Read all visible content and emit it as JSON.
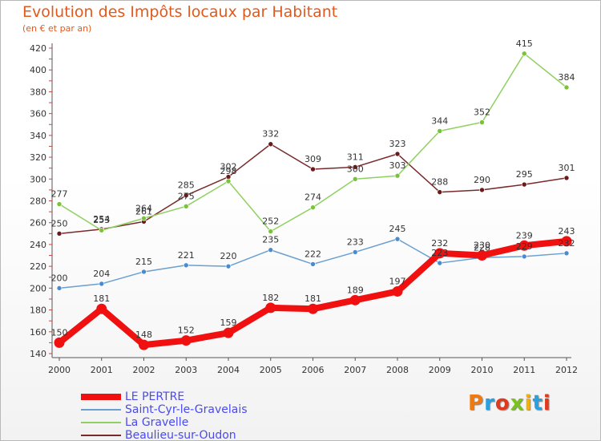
{
  "title": "Evolution des Impôts locaux par Habitant",
  "subtitle": "(en € et par an)",
  "brand": "Proxiti",
  "brand_colors": [
    "#f07a10",
    "#2aa0e0",
    "#e03a1e",
    "#7ac21e",
    "#f0b010",
    "#2aa0e0",
    "#e03a1e"
  ],
  "chart_data": {
    "type": "line",
    "x": [
      "2000",
      "2001",
      "2002",
      "2003",
      "2004",
      "2005",
      "2006",
      "2007",
      "2008",
      "2009",
      "2010",
      "2011",
      "2012"
    ],
    "yticks": [
      140,
      160,
      180,
      200,
      220,
      240,
      260,
      280,
      300,
      320,
      340,
      360,
      380,
      400,
      420
    ],
    "ylim": [
      140,
      425
    ],
    "grid": false,
    "legend_position": "bottom-left",
    "series": [
      {
        "name": "LE PERTRE",
        "color": "#f01010",
        "marker": "#f01010",
        "width": 8,
        "values": [
          150,
          181,
          148,
          152,
          159,
          182,
          181,
          189,
          197,
          232,
          230,
          239,
          243
        ],
        "labels": [
          "150",
          "181",
          "148",
          "152",
          "159",
          "182",
          "181",
          "189",
          "197",
          "232",
          "230",
          "239",
          "243"
        ]
      },
      {
        "name": "Saint-Cyr-le-Gravelais",
        "color": "#6a9fd0",
        "marker": "#4a8acf",
        "width": 1.5,
        "values": [
          200,
          204,
          215,
          221,
          220,
          235,
          222,
          233,
          245,
          223,
          228,
          229,
          232
        ],
        "labels": [
          "200",
          "204",
          "215",
          "221",
          "220",
          "235",
          "222",
          "233",
          "245",
          "223",
          "228",
          "229",
          "232"
        ]
      },
      {
        "name": "La Gravelle",
        "color": "#90d060",
        "marker": "#7ac23a",
        "width": 1.5,
        "values": [
          277,
          253,
          264,
          275,
          298,
          252,
          274,
          300,
          303,
          344,
          352,
          415,
          384
        ],
        "labels": [
          "277",
          "253",
          "264",
          "275",
          "298",
          "252",
          "274",
          "300",
          "303",
          "344",
          "352",
          "415",
          "384"
        ]
      },
      {
        "name": "Beaulieu-sur-Oudon",
        "color": "#7a2a2a",
        "marker": "#6a1a1a",
        "width": 1.5,
        "values": [
          250,
          254,
          261,
          285,
          302,
          332,
          309,
          311,
          323,
          288,
          290,
          295,
          301
        ],
        "labels": [
          "250",
          "254",
          "261",
          "285",
          "302",
          "332",
          "309",
          "311",
          "323",
          "288",
          "290",
          "295",
          "301"
        ]
      }
    ]
  }
}
